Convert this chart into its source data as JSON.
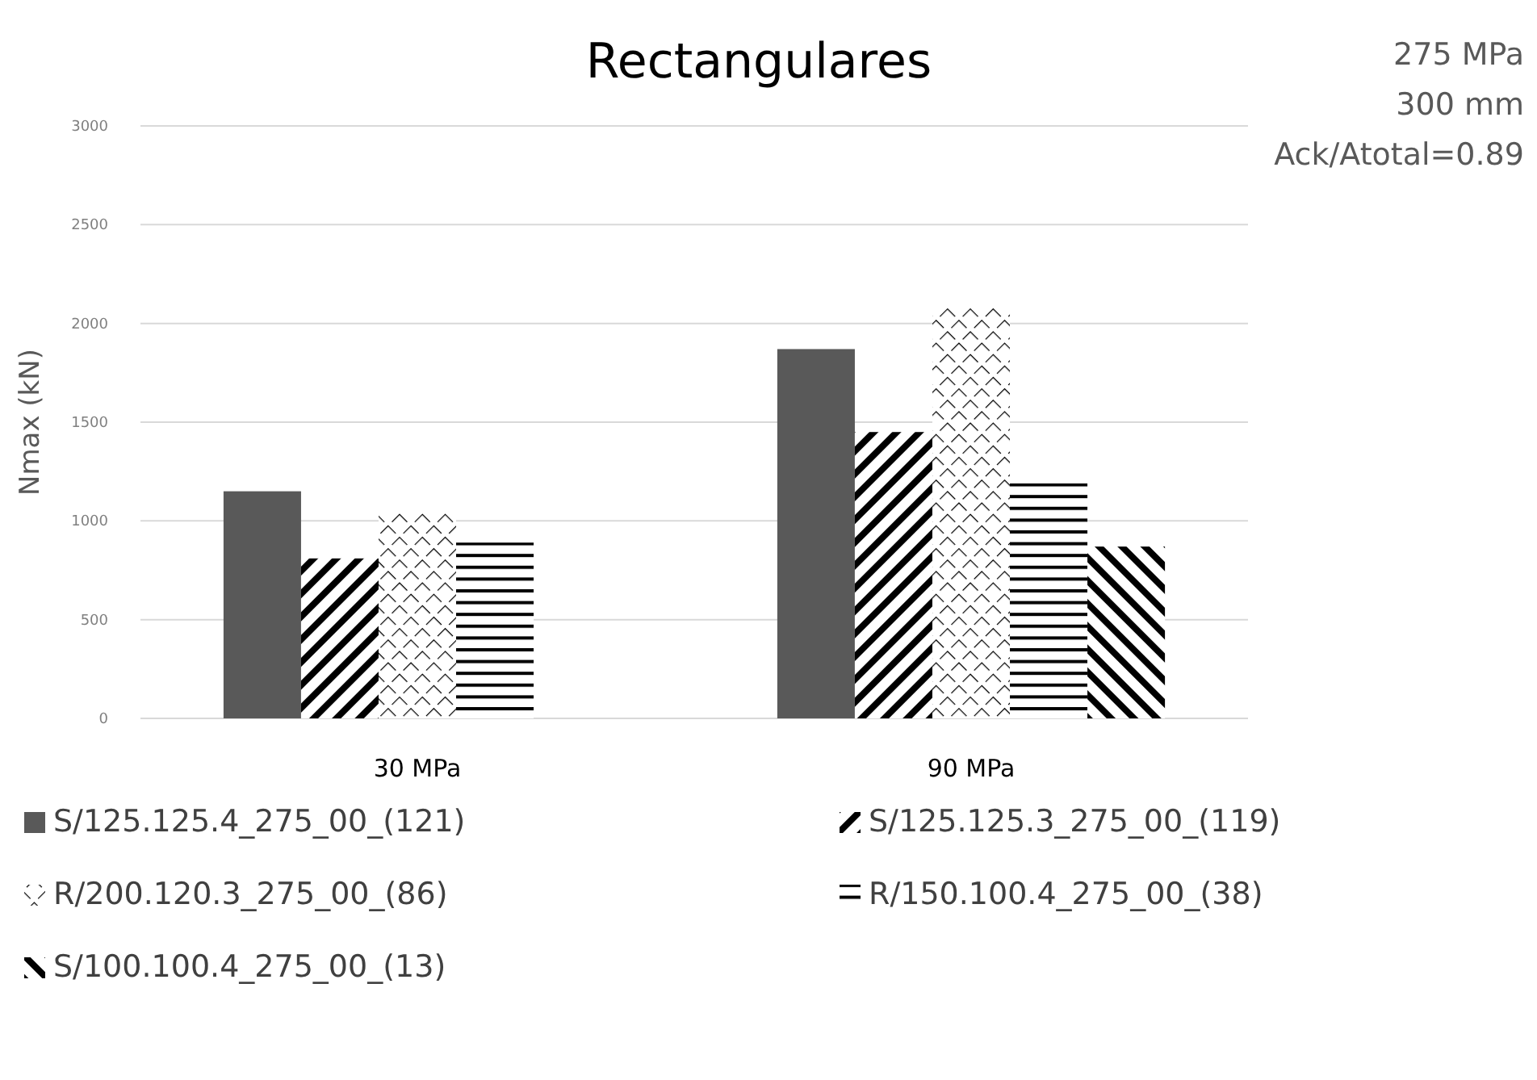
{
  "chart_data": {
    "type": "bar",
    "title": "Rectangulares",
    "ylabel": "Nmax (kN)",
    "annotations": [
      "275 MPa",
      "300 mm",
      "Ack/Atotal=0.89"
    ],
    "categories": [
      "30 MPa",
      "90 MPa"
    ],
    "series": [
      {
        "name": "S/125.125.4_275_00_(121)",
        "color": "#595959",
        "values": [
          1150,
          1870
        ]
      },
      {
        "name": "S/125.125.3_275_00_(119)",
        "color": "#000000",
        "values": [
          810,
          1450
        ]
      },
      {
        "name": "R/200.120.3_275_00_(86)",
        "color": "#000000",
        "values": [
          1040,
          2080
        ]
      },
      {
        "name": "R/150.100.4_275_00_(38)",
        "color": "#000000",
        "values": [
          890,
          1190
        ]
      },
      {
        "name": "S/100.100.4_275_00_(13)",
        "color": "#000000",
        "values": [
          null,
          870
        ]
      }
    ],
    "ylim": [
      0,
      3000
    ],
    "yticks": [
      0,
      500,
      1000,
      1500,
      2000,
      2500,
      3000
    ],
    "grid": "y",
    "legend": "bottom"
  }
}
